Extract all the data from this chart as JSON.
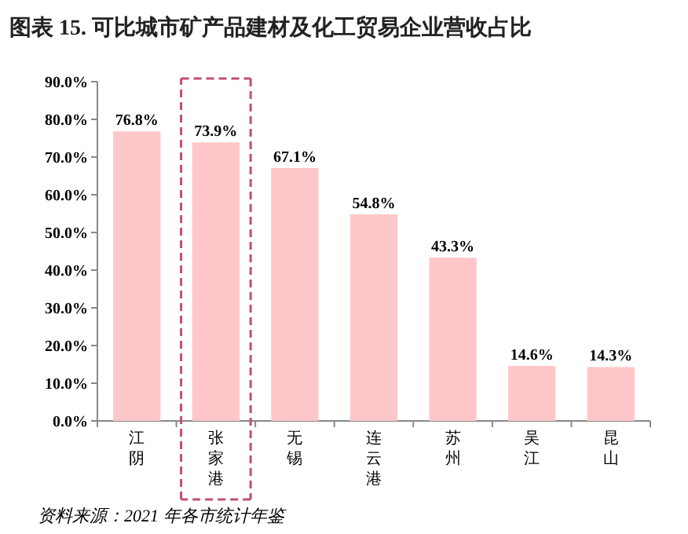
{
  "chart_data": {
    "type": "bar",
    "title": "图表 15. 可比城市矿产品建材及化工贸易企业营收占比",
    "categories": [
      "江阴",
      "张家港",
      "无锡",
      "连云港",
      "苏州",
      "吴江",
      "昆山"
    ],
    "values": [
      76.8,
      73.9,
      67.1,
      54.8,
      43.3,
      14.6,
      14.3
    ],
    "value_labels": [
      "76.8%",
      "73.9%",
      "67.1%",
      "54.8%",
      "43.3%",
      "14.6%",
      "14.3%"
    ],
    "color": "#ffc7c9",
    "ylim": [
      0,
      90
    ],
    "yticks": [
      {
        "value": 0,
        "label": "0.0%"
      },
      {
        "value": 10,
        "label": "10.0%"
      },
      {
        "value": 20,
        "label": "20.0%"
      },
      {
        "value": 30,
        "label": "30.0%"
      },
      {
        "value": 40,
        "label": "40.0%"
      },
      {
        "value": 50,
        "label": "50.0%"
      },
      {
        "value": 60,
        "label": "60.0%"
      },
      {
        "value": 70,
        "label": "70.0%"
      },
      {
        "value": 80,
        "label": "80.0%"
      },
      {
        "value": 90,
        "label": "90.0%"
      }
    ],
    "grid": false,
    "annotations": [
      "资料来源：2021 年各市统计年鉴"
    ]
  }
}
